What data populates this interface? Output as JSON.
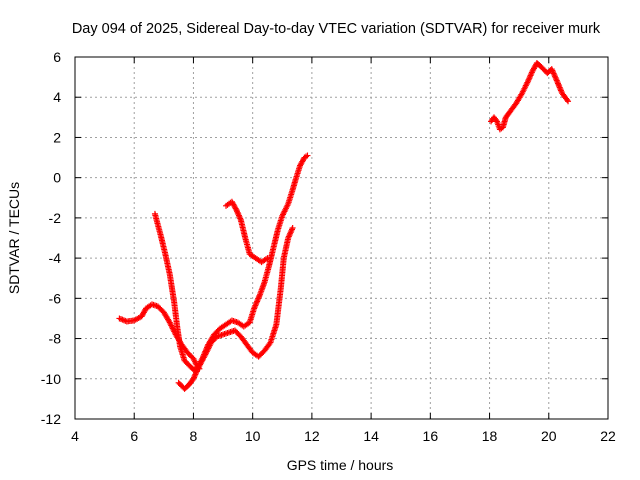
{
  "chart_data": {
    "type": "scatter",
    "title": "Day 094 of 2025, Sidereal Day-to-day VTEC variation (SDTVAR) for receiver murk",
    "xlabel": "GPS time / hours",
    "ylabel": "SDTVAR / TECUs",
    "xlim": [
      4,
      22
    ],
    "ylim": [
      -12,
      6
    ],
    "xticks": [
      "4",
      "6",
      "8",
      "10",
      "12",
      "14",
      "16",
      "18",
      "20",
      "22"
    ],
    "yticks": [
      "-12",
      "-10",
      "-8",
      "-6",
      "-4",
      "-2",
      "0",
      "2",
      "4",
      "6"
    ],
    "grid": true,
    "marker": "+",
    "color": "#ff0000",
    "tracks": [
      [
        [
          5.5,
          -7.0
        ],
        [
          5.75,
          -7.15
        ],
        [
          6.0,
          -7.1
        ],
        [
          6.25,
          -6.9
        ],
        [
          6.4,
          -6.5
        ],
        [
          6.6,
          -6.3
        ],
        [
          6.8,
          -6.4
        ],
        [
          7.0,
          -6.7
        ],
        [
          7.2,
          -7.2
        ],
        [
          7.4,
          -7.8
        ],
        [
          7.6,
          -8.3
        ],
        [
          7.8,
          -8.7
        ],
        [
          8.0,
          -9.0
        ],
        [
          8.1,
          -9.3
        ],
        [
          8.2,
          -9.5
        ]
      ],
      [
        [
          6.7,
          -1.8
        ],
        [
          6.9,
          -2.9
        ],
        [
          7.05,
          -3.8
        ],
        [
          7.2,
          -4.8
        ],
        [
          7.35,
          -6.2
        ],
        [
          7.45,
          -7.4
        ],
        [
          7.55,
          -8.4
        ],
        [
          7.7,
          -9.1
        ],
        [
          7.9,
          -9.4
        ],
        [
          8.05,
          -9.6
        ]
      ],
      [
        [
          7.5,
          -10.2
        ],
        [
          7.7,
          -10.5
        ],
        [
          7.85,
          -10.3
        ],
        [
          8.0,
          -10.0
        ],
        [
          8.15,
          -9.5
        ],
        [
          8.4,
          -8.8
        ],
        [
          8.6,
          -8.2
        ],
        [
          8.8,
          -7.9
        ],
        [
          9.0,
          -7.8
        ],
        [
          9.2,
          -7.7
        ],
        [
          9.4,
          -7.6
        ],
        [
          9.6,
          -7.9
        ],
        [
          9.8,
          -8.3
        ],
        [
          10.0,
          -8.7
        ],
        [
          10.2,
          -8.9
        ],
        [
          10.4,
          -8.6
        ],
        [
          10.6,
          -8.2
        ],
        [
          10.8,
          -7.3
        ],
        [
          10.95,
          -5.5
        ],
        [
          11.05,
          -4.0
        ],
        [
          11.2,
          -3.0
        ],
        [
          11.35,
          -2.5
        ]
      ],
      [
        [
          8.1,
          -9.5
        ],
        [
          8.3,
          -9.0
        ],
        [
          8.5,
          -8.3
        ],
        [
          8.7,
          -7.8
        ],
        [
          8.9,
          -7.5
        ],
        [
          9.1,
          -7.3
        ],
        [
          9.3,
          -7.1
        ],
        [
          9.5,
          -7.2
        ],
        [
          9.7,
          -7.4
        ],
        [
          9.9,
          -7.2
        ],
        [
          10.05,
          -6.5
        ],
        [
          10.25,
          -5.8
        ],
        [
          10.4,
          -5.2
        ],
        [
          10.55,
          -4.4
        ],
        [
          10.7,
          -3.5
        ],
        [
          10.85,
          -2.6
        ],
        [
          11.0,
          -1.9
        ],
        [
          11.2,
          -1.3
        ],
        [
          11.35,
          -0.6
        ],
        [
          11.45,
          -0.1
        ],
        [
          11.6,
          0.6
        ],
        [
          11.75,
          1.0
        ],
        [
          11.85,
          1.1
        ]
      ],
      [
        [
          9.1,
          -1.4
        ],
        [
          9.3,
          -1.2
        ],
        [
          9.45,
          -1.6
        ],
        [
          9.6,
          -2.1
        ],
        [
          9.75,
          -3.0
        ],
        [
          9.9,
          -3.8
        ],
        [
          10.1,
          -4.0
        ],
        [
          10.3,
          -4.2
        ],
        [
          10.5,
          -4.0
        ]
      ],
      [
        [
          18.05,
          2.8
        ],
        [
          18.15,
          3.0
        ],
        [
          18.25,
          2.8
        ],
        [
          18.35,
          2.4
        ],
        [
          18.45,
          2.5
        ],
        [
          18.55,
          3.0
        ],
        [
          18.7,
          3.3
        ],
        [
          18.9,
          3.7
        ],
        [
          19.1,
          4.2
        ],
        [
          19.3,
          4.8
        ],
        [
          19.45,
          5.3
        ],
        [
          19.6,
          5.7
        ],
        [
          19.75,
          5.5
        ],
        [
          19.95,
          5.2
        ],
        [
          20.1,
          5.4
        ],
        [
          20.25,
          4.9
        ],
        [
          20.45,
          4.2
        ],
        [
          20.65,
          3.8
        ]
      ]
    ]
  }
}
